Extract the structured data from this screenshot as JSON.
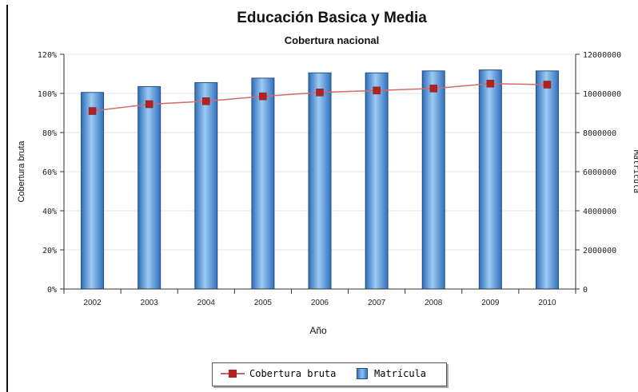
{
  "chart_data": {
    "type": "bar",
    "title": "Educación Basica y Media",
    "subtitle": "Cobertura nacional",
    "xlabel": "Año",
    "ylabel_left": "Cobertura bruta",
    "ylabel_right": "Matrícula",
    "categories": [
      "2002",
      "2003",
      "2004",
      "2005",
      "2006",
      "2007",
      "2008",
      "2009",
      "2010"
    ],
    "left_axis": {
      "ticks": [
        "0%",
        "20%",
        "40%",
        "60%",
        "80%",
        "100%",
        "120%"
      ],
      "ylim": [
        0,
        120
      ]
    },
    "right_axis": {
      "ticks": [
        "0",
        "2000000",
        "4000000",
        "6000000",
        "8000000",
        "10000000",
        "12000000"
      ],
      "ylim": [
        0,
        12000000
      ]
    },
    "series": [
      {
        "name": "Matrícula",
        "type": "bar",
        "axis": "right",
        "color": "#4a8ad6",
        "values": [
          10050000,
          10350000,
          10550000,
          10780000,
          11050000,
          11050000,
          11150000,
          11200000,
          11150000
        ]
      },
      {
        "name": "Cobertura bruta",
        "type": "line",
        "axis": "left",
        "color": "#b22222",
        "values": [
          91,
          94.5,
          96,
          98.5,
          100.5,
          101.5,
          102.5,
          105,
          104.5
        ]
      }
    ],
    "grid": "horizontal",
    "legend_position": "bottom"
  },
  "legend": {
    "items": [
      {
        "label": "Cobertura bruta"
      },
      {
        "label": "Matrícula"
      }
    ]
  }
}
